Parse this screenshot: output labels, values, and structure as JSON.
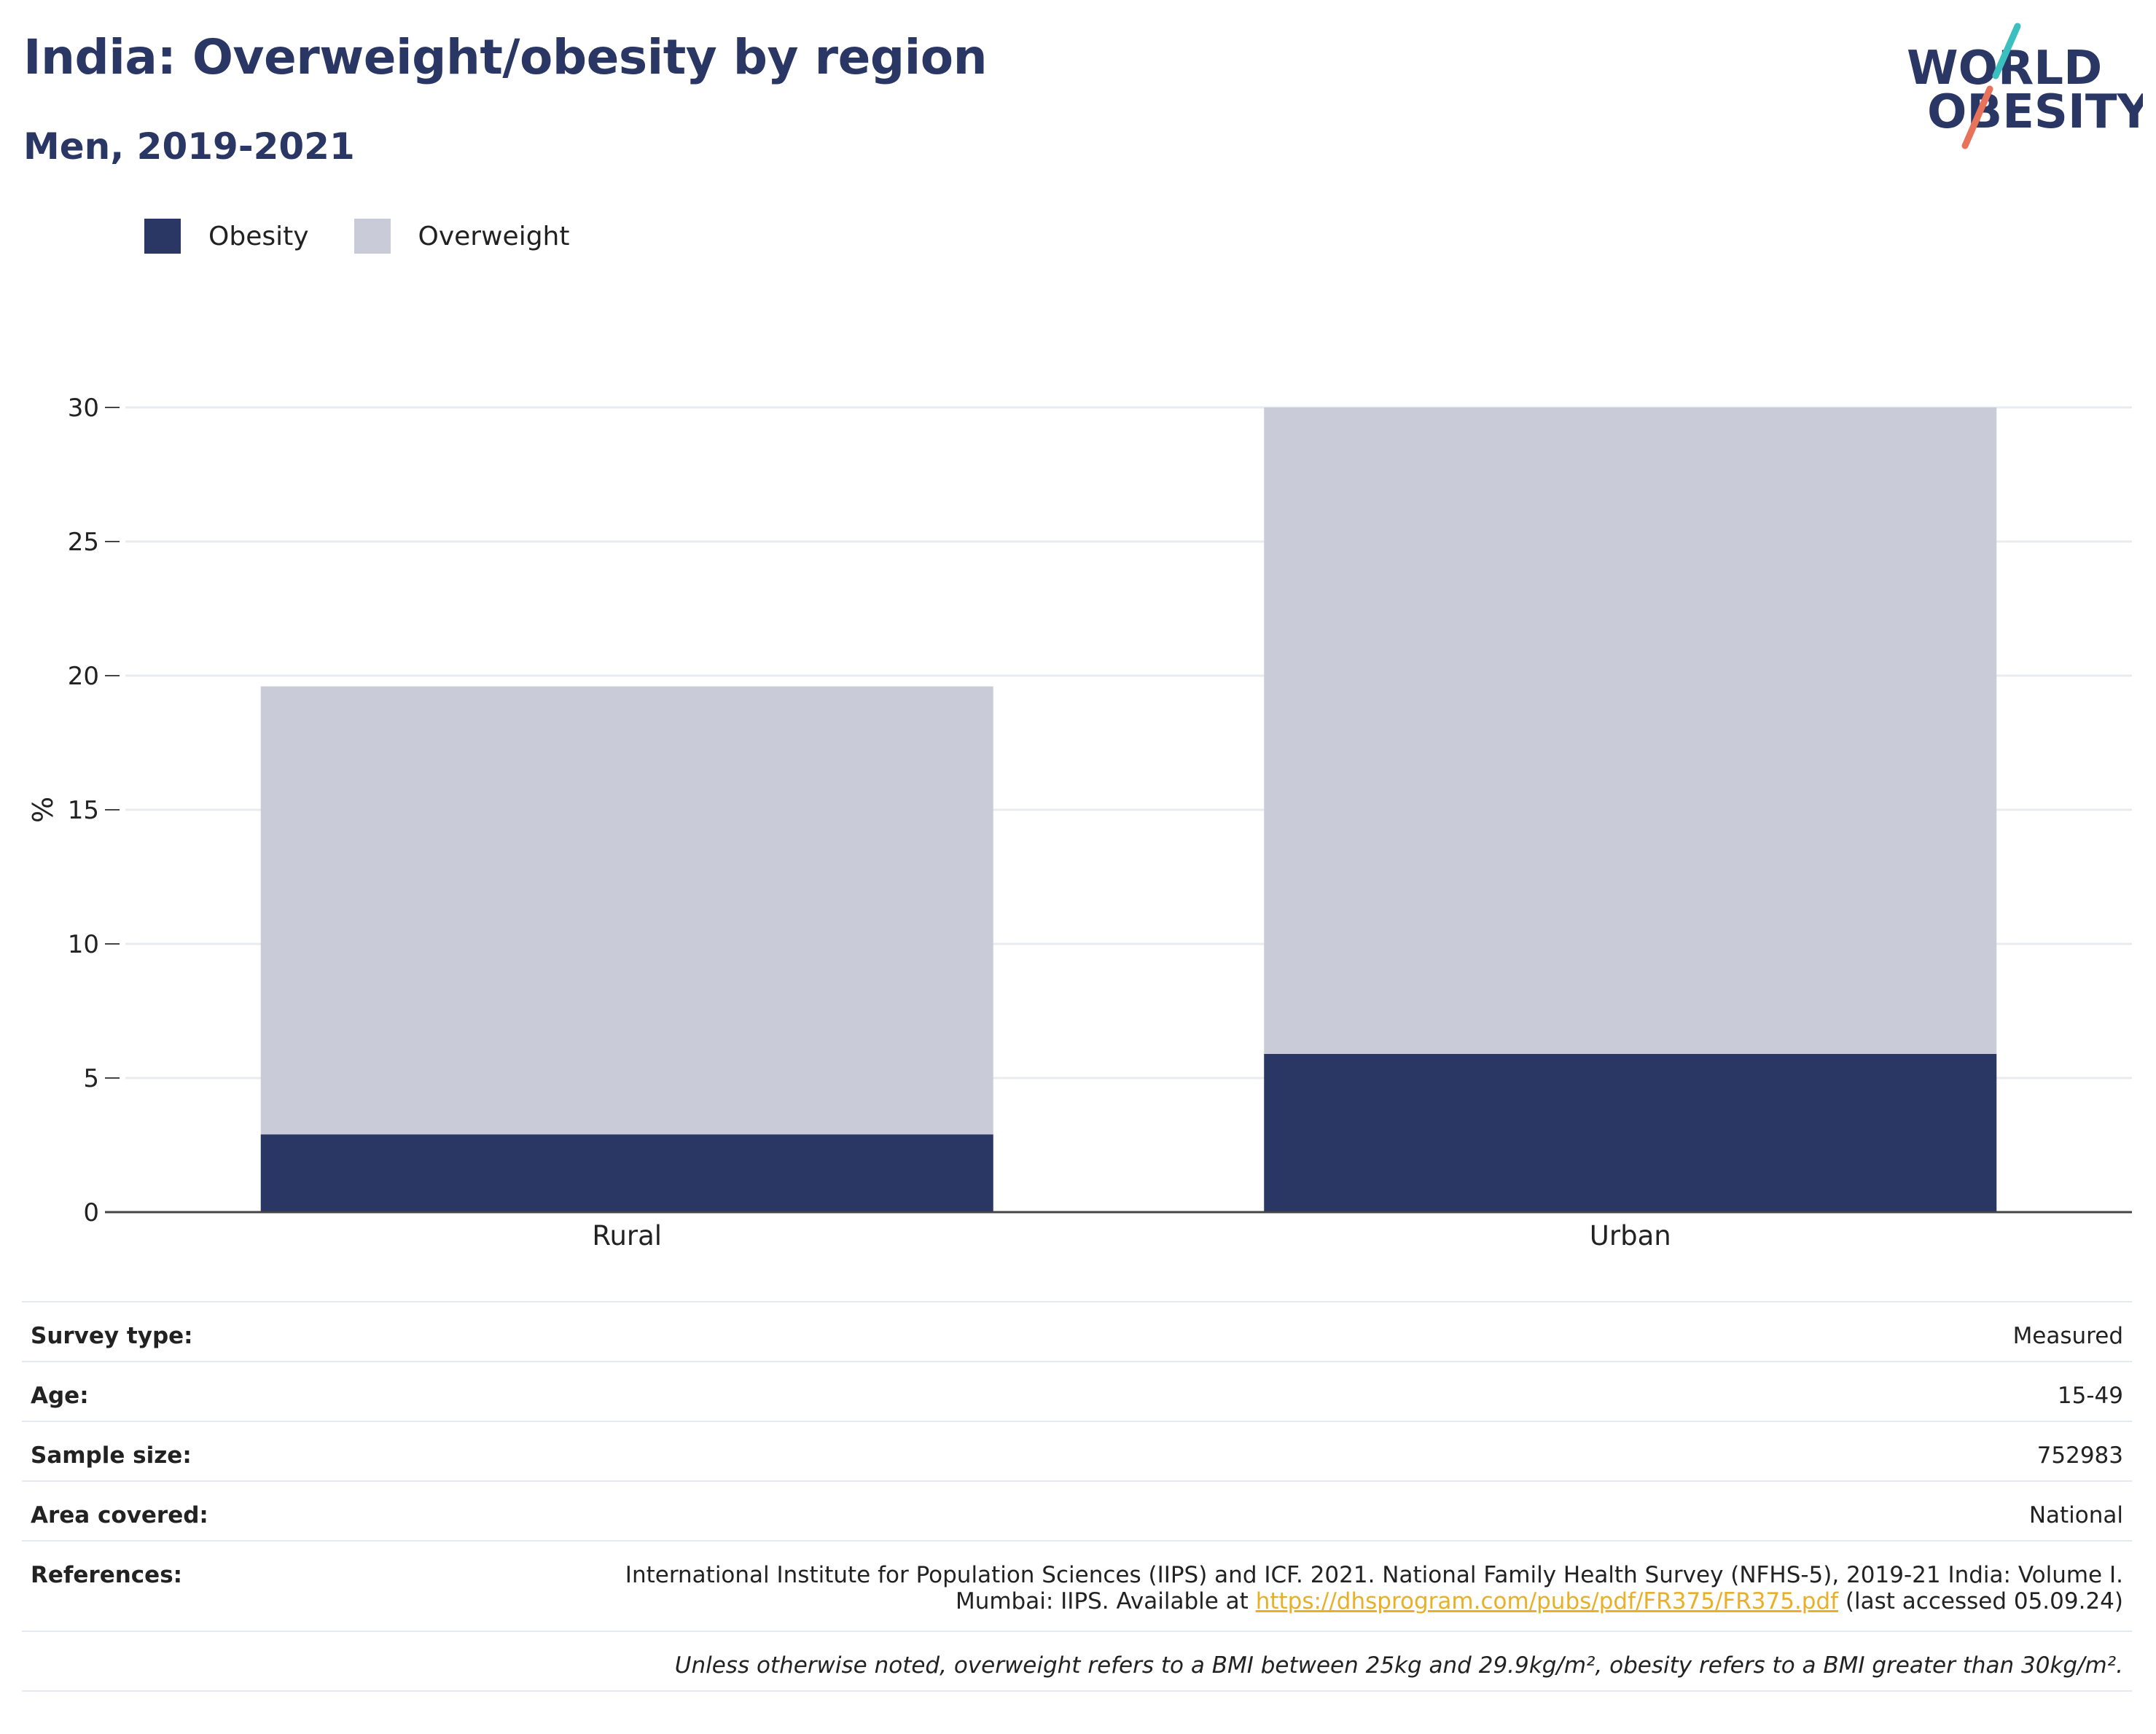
{
  "header": {
    "title": "India: Overweight/obesity by region",
    "subtitle": "Men, 2019-2021"
  },
  "logo": {
    "line1": "WORLD",
    "line2": "OBESITY",
    "slash_colors": [
      "#3bbfbf",
      "#e8735a"
    ],
    "text_color": "#2a3663"
  },
  "legend": {
    "items": [
      {
        "label": "Obesity",
        "color": "#2a3663"
      },
      {
        "label": "Overweight",
        "color": "#c9ccd8"
      }
    ]
  },
  "chart_data": {
    "type": "bar",
    "stacked": true,
    "categories": [
      "Rural",
      "Urban"
    ],
    "series": [
      {
        "name": "Obesity",
        "color": "#2a3663",
        "values": [
          2.9,
          5.9
        ]
      },
      {
        "name": "Overweight",
        "color": "#c9ccd8",
        "values": [
          16.7,
          24.1
        ]
      }
    ],
    "ylabel": "%",
    "xlabel": "",
    "ylim": [
      0,
      30
    ],
    "yticks": [
      0,
      5,
      10,
      15,
      20,
      25,
      30
    ],
    "grid": true,
    "legend_position": "top-left"
  },
  "info": {
    "survey_type": {
      "label": "Survey type:",
      "value": "Measured"
    },
    "age": {
      "label": "Age:",
      "value": "15-49"
    },
    "sample_size": {
      "label": "Sample size:",
      "value": "752983"
    },
    "area_covered": {
      "label": "Area covered:",
      "value": "National"
    },
    "references": {
      "label": "References:",
      "line1": "International Institute for Population Sciences (IIPS) and ICF. 2021. National Family Health Survey (NFHS-5), 2019-21 India: Volume I.",
      "line2_prefix": "Mumbai: IIPS. Available at ",
      "link": "https://dhsprogram.com/pubs/pdf/FR375/FR375.pdf",
      "line2_suffix": " (last accessed 05.09.24)"
    },
    "note": "Unless otherwise noted, overweight refers to a BMI between 25kg and 29.9kg/m², obesity refers to a BMI greater than 30kg/m²."
  }
}
